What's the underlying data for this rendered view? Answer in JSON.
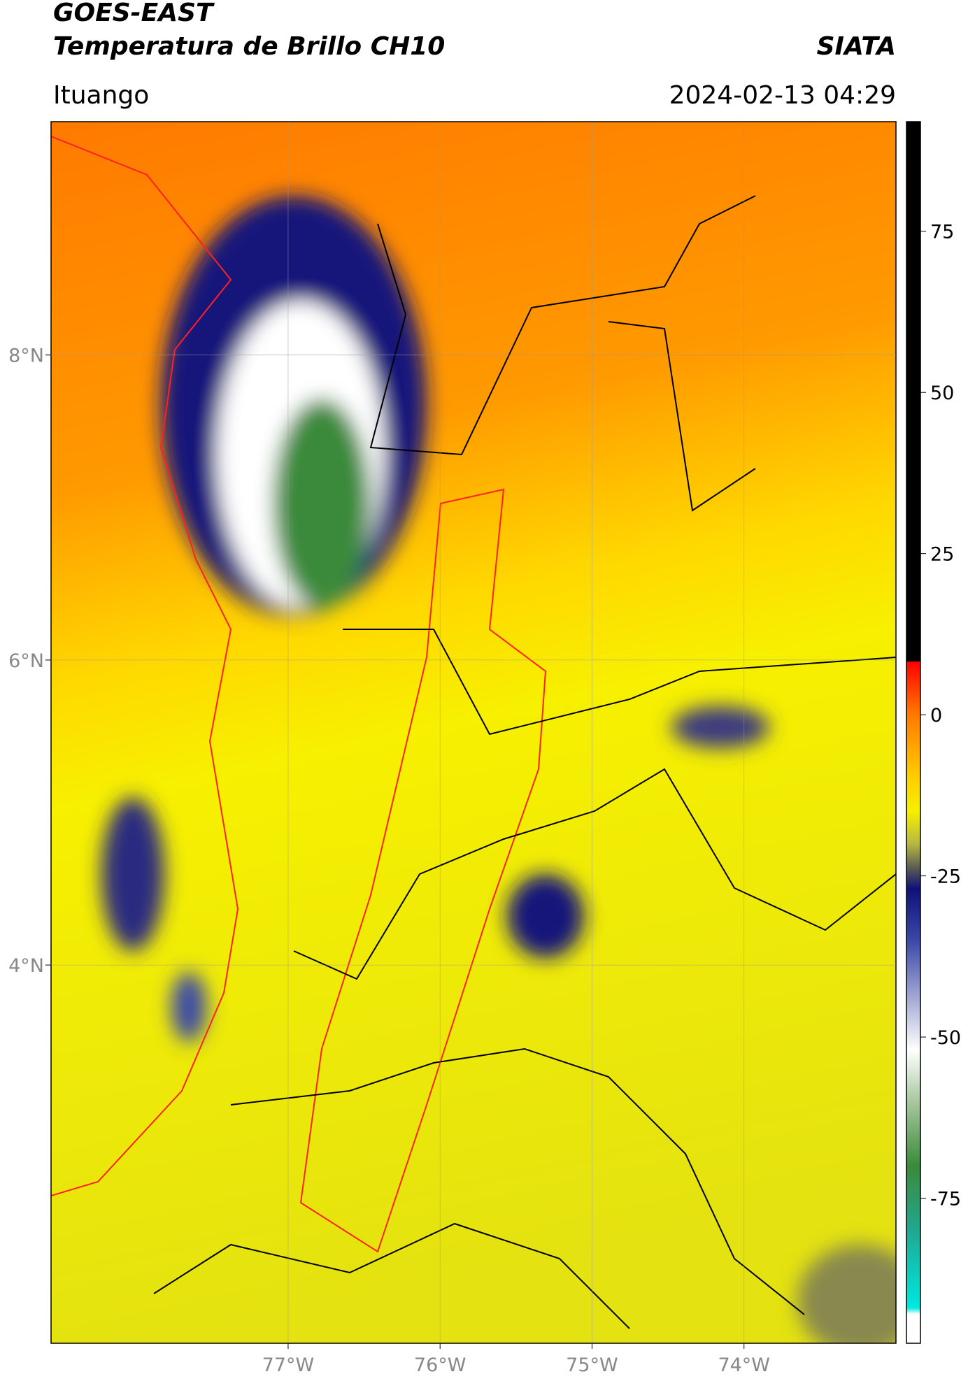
{
  "header": {
    "title": "GOES-EAST",
    "subtitle": "Temperatura de Brillo CH10",
    "brand": "SIATA",
    "location": "Ituango",
    "datetime": "2024-02-13 04:29"
  },
  "map": {
    "xlim": [
      -78.56,
      -73.0
    ],
    "ylim": [
      1.52,
      9.53
    ],
    "xticks": [
      {
        "value": -77,
        "label": "77°W"
      },
      {
        "value": -76,
        "label": "76°W"
      },
      {
        "value": -75,
        "label": "75°W"
      },
      {
        "value": -74,
        "label": "74°W"
      }
    ],
    "yticks": [
      {
        "value": 8,
        "label": "8°N"
      },
      {
        "value": 6,
        "label": "6°N"
      },
      {
        "value": 4,
        "label": "4°N"
      }
    ],
    "grid": true
  },
  "colorbar": {
    "clim": [
      -97.5,
      92
    ],
    "yticks": [
      75,
      50,
      25,
      0,
      -25,
      -50,
      -75
    ],
    "colormap": [
      {
        "value": 92,
        "color": "#000000"
      },
      {
        "value": 8.3,
        "color": "#000000"
      },
      {
        "value": 8.2,
        "color": "#ff0000"
      },
      {
        "value": 0,
        "color": "#ff7a00"
      },
      {
        "value": -10,
        "color": "#ffd000"
      },
      {
        "value": -15,
        "color": "#f5f000"
      },
      {
        "value": -20,
        "color": "#b8b840"
      },
      {
        "value": -24,
        "color": "#555555"
      },
      {
        "value": -27,
        "color": "#10107a"
      },
      {
        "value": -35,
        "color": "#3a48a8"
      },
      {
        "value": -45,
        "color": "#b0b4d8"
      },
      {
        "value": -52,
        "color": "#ffffff"
      },
      {
        "value": -60,
        "color": "#a8c8a0"
      },
      {
        "value": -70,
        "color": "#3a8a3a"
      },
      {
        "value": -80,
        "color": "#20a890"
      },
      {
        "value": -92,
        "color": "#00e8e0"
      },
      {
        "value": -93,
        "color": "#ffffff"
      },
      {
        "value": -97.5,
        "color": "#ffffff"
      }
    ]
  }
}
